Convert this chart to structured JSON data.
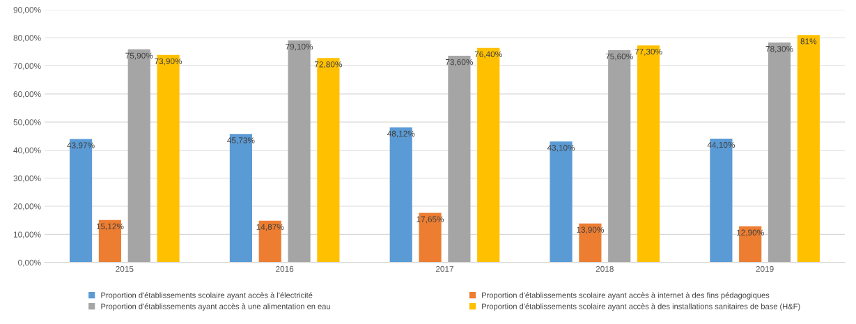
{
  "chart_data": {
    "type": "bar",
    "categories": [
      "2015",
      "2016",
      "2017",
      "2018",
      "2019"
    ],
    "series": [
      {
        "name": "Proportion d'établissements scolaire ayant accès à l'électricité",
        "color": "#5b9bd5",
        "values": [
          43.97,
          45.73,
          48.12,
          43.1,
          44.1
        ],
        "value_labels": [
          "43,97%",
          "45,73%",
          "48,12%",
          "43,10%",
          "44,10%"
        ]
      },
      {
        "name": "Proportion d'établissements scolaire ayant accès à internet à des fins pédagogiques",
        "color": "#ed7d31",
        "values": [
          15.12,
          14.87,
          17.65,
          13.9,
          12.9
        ],
        "value_labels": [
          "15,12%",
          "14,87%",
          "17,65%",
          "13,90%",
          "12,90%"
        ]
      },
      {
        "name": "Proportion d'établissements ayant accès à une alimentation en eau",
        "color": "#a5a5a5",
        "values": [
          75.9,
          79.1,
          73.6,
          75.6,
          78.3
        ],
        "value_labels": [
          "75,90%",
          "79,10%",
          "73,60%",
          "75,60%",
          "78,30%"
        ]
      },
      {
        "name": "Proportion d'établissements scolaire ayant accès à des installations sanitaires de base (H&F)",
        "color": "#ffc000",
        "values": [
          73.9,
          72.8,
          76.4,
          77.3,
          81
        ],
        "value_labels": [
          "73,90%",
          "72,80%",
          "76,40%",
          "77,30%",
          "81%"
        ]
      }
    ],
    "ylim": [
      0,
      90
    ],
    "yticks": [
      {
        "value": 0,
        "label": "0,00%"
      },
      {
        "value": 10,
        "label": "10,00%"
      },
      {
        "value": 20,
        "label": "20,00%"
      },
      {
        "value": 30,
        "label": "30,00%"
      },
      {
        "value": 40,
        "label": "40,00%"
      },
      {
        "value": 50,
        "label": "50,00%"
      },
      {
        "value": 60,
        "label": "60,00%"
      },
      {
        "value": 70,
        "label": "70,00%"
      },
      {
        "value": 80,
        "label": "80,00%"
      },
      {
        "value": 90,
        "label": "90,00%"
      }
    ],
    "grid": "y",
    "legend": "bottom"
  }
}
